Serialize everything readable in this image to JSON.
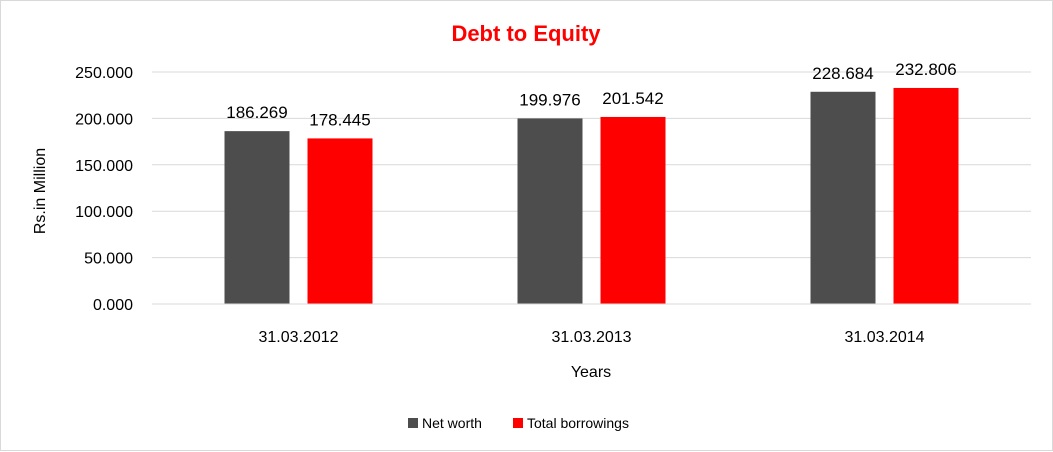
{
  "chart_data": {
    "type": "bar",
    "title": "Debt to Equity",
    "title_color": "#ff0000",
    "xlabel": "Years",
    "ylabel": "Rs.in Million",
    "categories": [
      "31.03.2012",
      "31.03.2013",
      "31.03.2014"
    ],
    "series": [
      {
        "name": "Net worth",
        "color": "#4d4d4d",
        "values": [
          186.269,
          199.976,
          228.684
        ],
        "labels": [
          "186.269",
          "199.976",
          "228.684"
        ]
      },
      {
        "name": "Total borrowings",
        "color": "#ff0000",
        "values": [
          178.445,
          201.542,
          232.806
        ],
        "labels": [
          "178.445",
          "201.542",
          "232.806"
        ]
      }
    ],
    "ylim": [
      0,
      250
    ],
    "yticks": [
      0,
      50,
      100,
      150,
      200,
      250
    ],
    "ytick_labels": [
      "0.000",
      "50.000",
      "100.000",
      "150.000",
      "200.000",
      "250.000"
    ],
    "grid": true,
    "grid_color": "#d9d9d9",
    "legend_position": "bottom"
  }
}
